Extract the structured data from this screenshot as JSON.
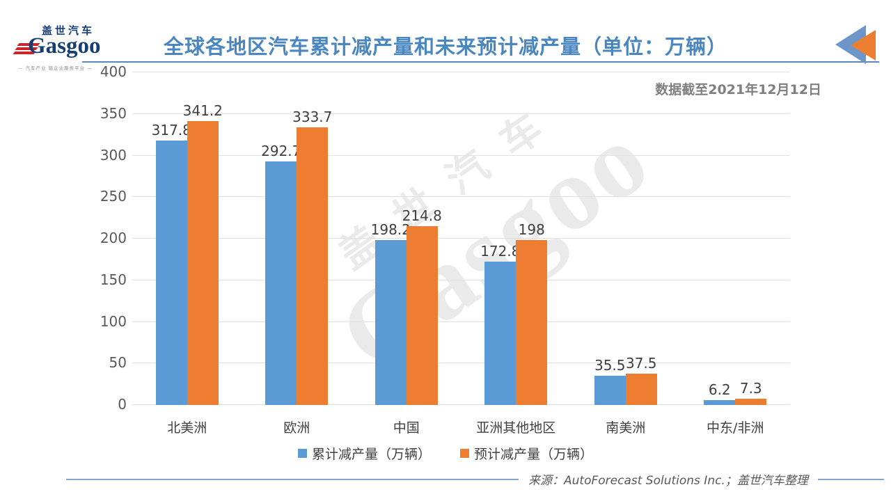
{
  "logo": {
    "cn": "盖世汽车",
    "en": "Gasgoo",
    "tagline": "— 汽车产业 链企业服务平台 —"
  },
  "header": {
    "title": "全球各地区汽车累计减产量和未来预计减产量（单位：万辆）"
  },
  "note": "数据截至2021年12月12日",
  "source": "来源：AutoForecast Solutions Inc.；盖世汽车整理",
  "watermark": {
    "cn": "盖世汽车",
    "en": "Gasgoo"
  },
  "colors": {
    "title_blue": "#4A86C0",
    "rule_blue": "#5B88B8",
    "bar_blue": "#5B9BD5",
    "bar_orange": "#ED7D31",
    "logo_navy": "#173E72",
    "logo_red": "#C8252C"
  },
  "chart_data": {
    "type": "bar",
    "title": "全球各地区汽车累计减产量和未来预计减产量（单位：万辆）",
    "categories": [
      "北美洲",
      "欧洲",
      "中国",
      "亚洲其他地区",
      "南美洲",
      "中东/非洲"
    ],
    "series": [
      {
        "key": "accumulated",
        "name": "累计减产量（万辆）",
        "color": "#5B9BD5",
        "values": [
          317.8,
          292.7,
          198.2,
          172.8,
          35.5,
          6.2
        ]
      },
      {
        "key": "projected",
        "name": "预计减产量（万辆）",
        "color": "#ED7D31",
        "values": [
          341.2,
          333.7,
          214.8,
          198,
          37.5,
          7.3
        ]
      }
    ],
    "xlabel": "",
    "ylabel": "",
    "ylim": [
      0,
      400
    ],
    "ytick_step": 50,
    "grid": true,
    "legend_position": "bottom",
    "annotation": "数据截至2021年12月12日"
  }
}
